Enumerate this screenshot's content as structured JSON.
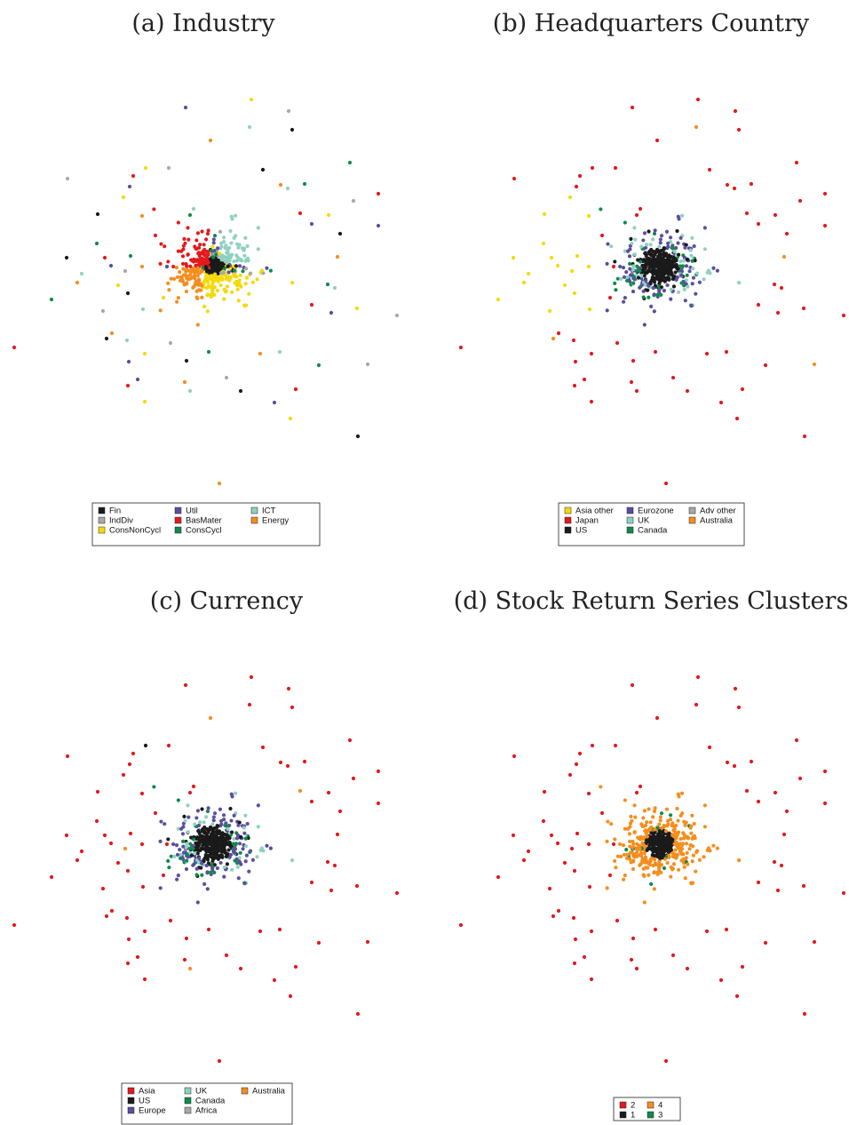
{
  "chart_data": [
    {
      "type": "scatter",
      "title": "(a) Industry",
      "series": [
        {
          "name": "Fin",
          "color": "#1a1a1a"
        },
        {
          "name": "IndDiv",
          "color": "#a8a8a8"
        },
        {
          "name": "ConsNonCycl",
          "color": "#f5d90a"
        },
        {
          "name": "Util",
          "color": "#5b4ea0"
        },
        {
          "name": "BasMater",
          "color": "#e31a1c"
        },
        {
          "name": "ConsCycl",
          "color": "#108a4c"
        },
        {
          "name": "ICT",
          "color": "#8fd1c0"
        },
        {
          "name": "Energy",
          "color": "#f58d1e"
        }
      ],
      "legend": {
        "placement": "bottom-center",
        "columns": 3
      }
    },
    {
      "type": "scatter",
      "title": "(b) Headquarters Country",
      "series": [
        {
          "name": "Asia other",
          "color": "#f5d90a"
        },
        {
          "name": "Japan",
          "color": "#e31a1c"
        },
        {
          "name": "US",
          "color": "#1a1a1a"
        },
        {
          "name": "Eurozone",
          "color": "#5b4ea0"
        },
        {
          "name": "UK",
          "color": "#8fd1c0"
        },
        {
          "name": "Canada",
          "color": "#108a4c"
        },
        {
          "name": "Adv other",
          "color": "#a8a8a8"
        },
        {
          "name": "Australia",
          "color": "#f58d1e"
        }
      ],
      "legend": {
        "placement": "bottom-center",
        "columns": 3
      }
    },
    {
      "type": "scatter",
      "title": "(c) Currency",
      "series": [
        {
          "name": "Asia",
          "color": "#e31a1c"
        },
        {
          "name": "US",
          "color": "#1a1a1a"
        },
        {
          "name": "Europe",
          "color": "#5b4ea0"
        },
        {
          "name": "UK",
          "color": "#8fd1c0"
        },
        {
          "name": "Canada",
          "color": "#108a4c"
        },
        {
          "name": "Africa",
          "color": "#a8a8a8"
        },
        {
          "name": "Australia",
          "color": "#f58d1e"
        }
      ],
      "legend": {
        "placement": "bottom-center",
        "columns": 3
      }
    },
    {
      "type": "scatter",
      "title": "(d) Stock Return Series Clusters",
      "series": [
        {
          "name": "2",
          "color": "#e31a1c"
        },
        {
          "name": "1",
          "color": "#1a1a1a"
        },
        {
          "name": "4",
          "color": "#f58d1e"
        },
        {
          "name": "3",
          "color": "#108a4c"
        }
      ],
      "legend": {
        "placement": "bottom-center",
        "columns": 2
      }
    }
  ]
}
